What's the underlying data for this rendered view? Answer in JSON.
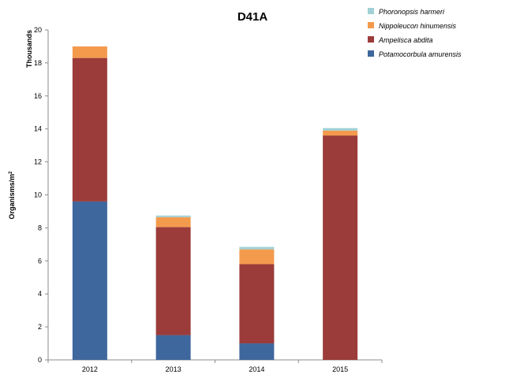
{
  "chart_data": {
    "type": "bar",
    "stacked": true,
    "title": "D41A",
    "ylabel": "Organisms/m",
    "ylabel_superscript": "2",
    "units_label": "Thousands",
    "categories": [
      "2012",
      "2013",
      "2014",
      "2015"
    ],
    "ylim": [
      0,
      20
    ],
    "yticks": [
      0,
      2,
      4,
      6,
      8,
      10,
      12,
      14,
      16,
      18,
      20
    ],
    "grid": false,
    "legend_position": "top-right",
    "series": [
      {
        "name": "Potamocorbula amurensis",
        "color": "#3e679d",
        "values": [
          9.6,
          1.5,
          1.0,
          0.0
        ]
      },
      {
        "name": "Ampelisca abdita",
        "color": "#9b3c3a",
        "values": [
          8.7,
          6.55,
          4.8,
          13.6
        ]
      },
      {
        "name": "Nippoleucon hinumensis",
        "color": "#f49a4d",
        "values": [
          0.7,
          0.6,
          0.9,
          0.3
        ]
      },
      {
        "name": "Phoronopsis harmeri",
        "color": "#9fd1d6",
        "values": [
          0.0,
          0.1,
          0.15,
          0.15
        ]
      }
    ]
  }
}
